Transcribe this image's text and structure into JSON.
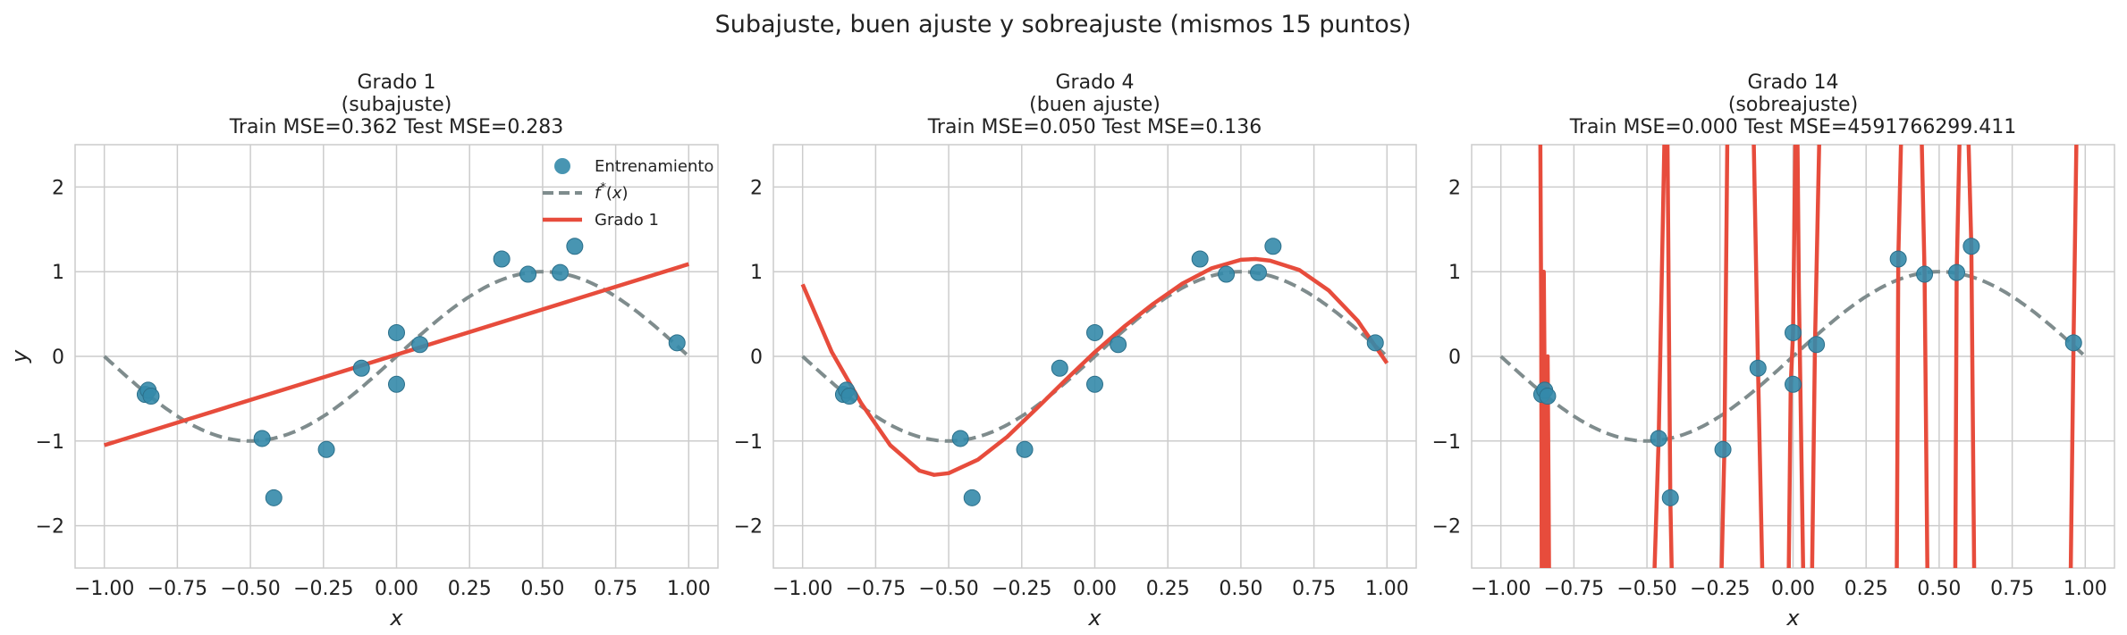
{
  "figure": {
    "suptitle": "Subajuste, buen ajuste y sobreajuste (mismos 15 puntos)"
  },
  "colors": {
    "points": "#348aaa",
    "truth": "#7f8c8d",
    "fit": "#e74c3c",
    "grid": "#cccccc"
  },
  "legend": {
    "placement": "top-right (first panel only)",
    "entries": [
      "Entrenamiento",
      "f*(x)",
      "Grado 1"
    ]
  },
  "chart_data": [
    {
      "type": "scatter+line",
      "title_lines": [
        "Grado 1",
        "(subajuste)",
        "Train MSE=0.362  Test MSE=0.283"
      ],
      "xlabel": "x",
      "ylabel": "y",
      "xlim": [
        -1.1,
        1.1
      ],
      "ylim": [
        -2.5,
        2.5
      ],
      "xticks": [
        -1.0,
        -0.75,
        -0.5,
        -0.25,
        0.0,
        0.25,
        0.5,
        0.75,
        1.0
      ],
      "xtick_labels": [
        "−1.00",
        "−0.75",
        "−0.50",
        "−0.25",
        "0.00",
        "0.25",
        "0.50",
        "0.75",
        "1.00"
      ],
      "yticks": [
        -2,
        -1,
        0,
        1,
        2
      ],
      "ytick_labels": [
        "−2",
        "−1",
        "0",
        "1",
        "2"
      ],
      "grid": true,
      "series": [
        {
          "name": "Entrenamiento",
          "kind": "scatter",
          "x": [
            -0.86,
            -0.85,
            -0.84,
            -0.46,
            -0.42,
            -0.24,
            -0.12,
            0.0,
            0.0,
            0.08,
            0.36,
            0.45,
            0.56,
            0.61,
            0.96
          ],
          "y": [
            -0.45,
            -0.4,
            -0.47,
            -0.97,
            -1.67,
            -1.1,
            -0.14,
            0.28,
            -0.33,
            0.14,
            1.15,
            0.97,
            0.99,
            1.3,
            0.16
          ]
        },
        {
          "name": "f*(x)",
          "kind": "line",
          "style": "dashed",
          "function": "sin(pi*x)",
          "x_range": [
            -1.0,
            1.0
          ]
        },
        {
          "name": "Grado 1",
          "kind": "line",
          "style": "solid",
          "degree": 1,
          "x": [
            -1.0,
            1.0
          ],
          "y": [
            -1.05,
            1.09
          ]
        }
      ]
    },
    {
      "type": "scatter+line",
      "title_lines": [
        "Grado 4",
        "(buen ajuste)",
        "Train MSE=0.050  Test MSE=0.136"
      ],
      "xlabel": "x",
      "ylabel": "",
      "xlim": [
        -1.1,
        1.1
      ],
      "ylim": [
        -2.5,
        2.5
      ],
      "xticks": [
        -1.0,
        -0.75,
        -0.5,
        -0.25,
        0.0,
        0.25,
        0.5,
        0.75,
        1.0
      ],
      "xtick_labels": [
        "−1.00",
        "−0.75",
        "−0.50",
        "−0.25",
        "0.00",
        "0.25",
        "0.50",
        "0.75",
        "1.00"
      ],
      "yticks": [
        -2,
        -1,
        0,
        1,
        2
      ],
      "ytick_labels": [
        "−2",
        "−1",
        "0",
        "1",
        "2"
      ],
      "grid": true,
      "series": [
        {
          "kind": "scatter",
          "x": [
            -0.86,
            -0.85,
            -0.84,
            -0.46,
            -0.42,
            -0.24,
            -0.12,
            0.0,
            0.0,
            0.08,
            0.36,
            0.45,
            0.56,
            0.61,
            0.96
          ],
          "y": [
            -0.45,
            -0.4,
            -0.47,
            -0.97,
            -1.67,
            -1.1,
            -0.14,
            0.28,
            -0.33,
            0.14,
            1.15,
            0.97,
            0.99,
            1.3,
            0.16
          ]
        },
        {
          "kind": "line",
          "style": "dashed",
          "function": "sin(pi*x)",
          "x_range": [
            -1.0,
            1.0
          ]
        },
        {
          "kind": "line",
          "style": "solid",
          "degree": 4,
          "x": [
            -1.0,
            -0.9,
            -0.8,
            -0.7,
            -0.6,
            -0.55,
            -0.5,
            -0.4,
            -0.3,
            -0.2,
            -0.1,
            0.0,
            0.1,
            0.2,
            0.3,
            0.4,
            0.5,
            0.55,
            0.6,
            0.7,
            0.8,
            0.9,
            1.0
          ],
          "y": [
            0.85,
            0.05,
            -0.55,
            -1.05,
            -1.35,
            -1.4,
            -1.38,
            -1.22,
            -0.95,
            -0.62,
            -0.28,
            0.05,
            0.35,
            0.62,
            0.86,
            1.04,
            1.14,
            1.15,
            1.13,
            1.02,
            0.78,
            0.42,
            -0.08
          ]
        }
      ]
    },
    {
      "type": "scatter+line",
      "title_lines": [
        "Grado 14",
        "(sobreajuste)",
        "Train MSE=0.000  Test MSE=4591766299.411"
      ],
      "xlabel": "x",
      "ylabel": "",
      "xlim": [
        -1.1,
        1.1
      ],
      "ylim": [
        -2.5,
        2.5
      ],
      "xticks": [
        -1.0,
        -0.75,
        -0.5,
        -0.25,
        0.0,
        0.25,
        0.5,
        0.75,
        1.0
      ],
      "xtick_labels": [
        "−1.00",
        "−0.75",
        "−0.50",
        "−0.25",
        "0.00",
        "0.25",
        "0.50",
        "0.75",
        "1.00"
      ],
      "yticks": [
        -2,
        -1,
        0,
        1,
        2
      ],
      "ytick_labels": [
        "−2",
        "−1",
        "0",
        "1",
        "2"
      ],
      "grid": true,
      "series": [
        {
          "kind": "scatter",
          "x": [
            -0.86,
            -0.85,
            -0.84,
            -0.46,
            -0.42,
            -0.24,
            -0.12,
            0.0,
            0.0,
            0.08,
            0.36,
            0.45,
            0.56,
            0.61,
            0.96
          ],
          "y": [
            -0.45,
            -0.4,
            -0.47,
            -0.97,
            -1.67,
            -1.1,
            -0.14,
            0.28,
            -0.33,
            0.14,
            1.15,
            0.97,
            0.99,
            1.3,
            0.16
          ]
        },
        {
          "kind": "line",
          "style": "dashed",
          "function": "sin(pi*x)",
          "x_range": [
            -1.0,
            1.0
          ]
        },
        {
          "kind": "line",
          "style": "solid",
          "degree": 14,
          "segments": [
            {
              "x": [
                -0.865,
                -0.862,
                -0.86,
                -0.857,
                -0.855,
                -0.853,
                -0.85,
                -0.848,
                -0.845,
                -0.843,
                -0.84,
                -0.837,
                -0.835
              ],
              "y": [
                2.6,
                0.5,
                -2.6,
                -2.6,
                -0.5,
                1.0,
                -0.4,
                -2.6,
                -2.6,
                -0.45,
                0.0,
                -1.5,
                -2.6
              ]
            },
            {
              "x": [
                -0.475,
                -0.46,
                -0.45,
                -0.44,
                -0.43,
                -0.42,
                -0.415
              ],
              "y": [
                -2.6,
                -0.97,
                0.8,
                2.6,
                2.6,
                -1.67,
                -2.6
              ]
            },
            {
              "x": [
                -0.245,
                -0.235,
                -0.225
              ],
              "y": [
                -2.6,
                -1.1,
                2.6
              ]
            },
            {
              "x": [
                -0.135,
                -0.12,
                -0.105
              ],
              "y": [
                2.6,
                -0.14,
                -2.6
              ]
            },
            {
              "x": [
                -0.015,
                -0.008,
                0.0,
                0.008,
                0.015,
                0.02,
                0.035
              ],
              "y": [
                -2.6,
                -0.33,
                0.28,
                2.6,
                2.6,
                0.8,
                -2.6
              ]
            },
            {
              "x": [
                0.065,
                0.075,
                0.09
              ],
              "y": [
                -2.6,
                0.14,
                2.6
              ]
            },
            {
              "x": [
                0.355,
                0.36,
                0.37
              ],
              "y": [
                -2.6,
                1.15,
                2.6
              ]
            },
            {
              "x": [
                0.44,
                0.45,
                0.46
              ],
              "y": [
                2.6,
                0.97,
                -2.6
              ]
            },
            {
              "x": [
                0.555,
                0.56,
                0.57
              ],
              "y": [
                -2.6,
                0.99,
                2.6
              ]
            },
            {
              "x": [
                0.6,
                0.61,
                0.62
              ],
              "y": [
                2.6,
                1.3,
                -2.6
              ]
            },
            {
              "x": [
                0.95,
                0.96,
                0.97
              ],
              "y": [
                -2.6,
                0.16,
                2.6
              ]
            }
          ]
        }
      ]
    }
  ]
}
